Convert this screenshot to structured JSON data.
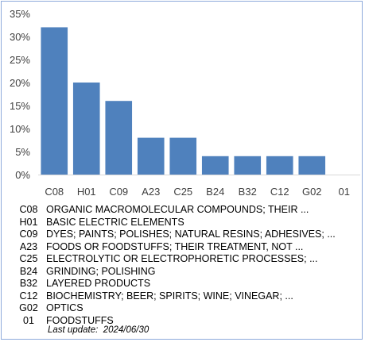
{
  "chart_data": {
    "type": "bar",
    "categories": [
      "C08",
      "H01",
      "C09",
      "A23",
      "C25",
      "B24",
      "B32",
      "C12",
      "G02",
      "01"
    ],
    "values": [
      32,
      20,
      16,
      8,
      8,
      4,
      4,
      4,
      4,
      0
    ],
    "ylim": [
      0,
      35
    ],
    "yticks": [
      "0%",
      "5%",
      "10%",
      "15%",
      "20%",
      "25%",
      "30%",
      "35%"
    ],
    "bar_color": "#4f81bd",
    "grid": false
  },
  "legend": [
    {
      "code": "C08",
      "desc": "ORGANIC MACROMOLECULAR COMPOUNDS; THEIR ..."
    },
    {
      "code": "H01",
      "desc": "BASIC ELECTRIC ELEMENTS"
    },
    {
      "code": "C09",
      "desc": "DYES; PAINTS; POLISHES; NATURAL RESINS; ADHESIVES; ..."
    },
    {
      "code": "A23",
      "desc": "FOODS OR FOODSTUFFS; THEIR TREATMENT, NOT ..."
    },
    {
      "code": "C25",
      "desc": "ELECTROLYTIC OR ELECTROPHORETIC PROCESSES; ..."
    },
    {
      "code": "B24",
      "desc": "GRINDING; POLISHING"
    },
    {
      "code": "B32",
      "desc": "LAYERED PRODUCTS"
    },
    {
      "code": "C12",
      "desc": "BIOCHEMISTRY; BEER; SPIRITS; WINE; VINEGAR; ..."
    },
    {
      "code": "G02",
      "desc": "OPTICS"
    },
    {
      "code": "01",
      "desc": "FOODSTUFFS"
    }
  ],
  "last_update": "Last update:  2024/06/30"
}
